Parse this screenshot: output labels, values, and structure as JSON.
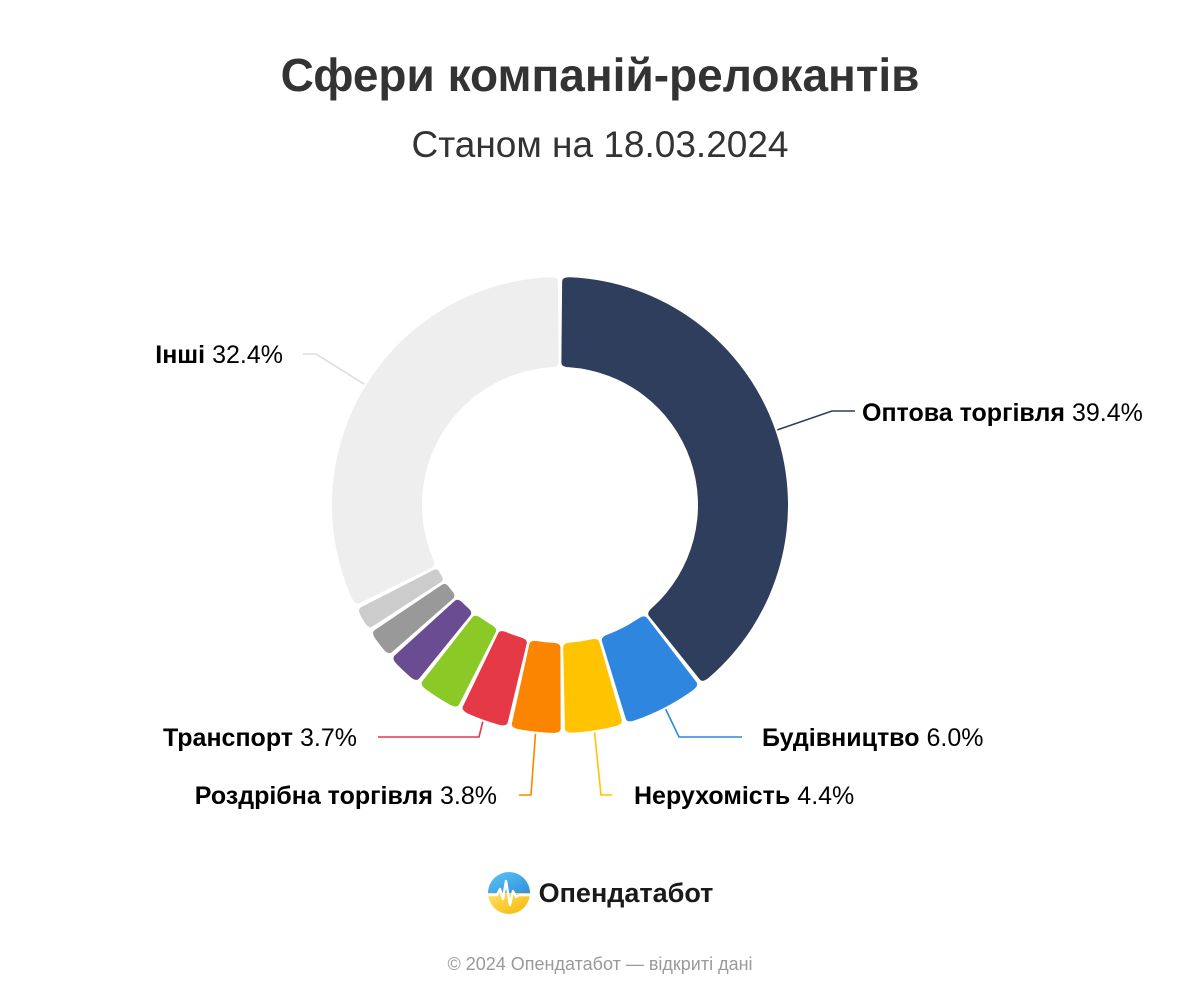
{
  "page": {
    "title": "Сфери компаній-релокантів",
    "subtitle": "Станом на 18.03.2024",
    "brand": "Опендатабот",
    "footer": "© 2024 Опендатабот — відкриті дані"
  },
  "chart_data": {
    "type": "pie",
    "title": "Сфери компаній-релокантів",
    "subtitle": "Станом на 18.03.2024",
    "donut": true,
    "start_angle_deg": 0,
    "direction": "clockwise",
    "slices": [
      {
        "name": "Оптова торгівля",
        "value": 39.4,
        "label": "39.4%",
        "color": "#2f3e5c"
      },
      {
        "name": "Будівництво",
        "value": 6.0,
        "label": "6.0%",
        "color": "#2e86de"
      },
      {
        "name": "Нерухомість",
        "value": 4.4,
        "label": "4.4%",
        "color": "#ffc300"
      },
      {
        "name": "Роздрібна торгівля",
        "value": 3.8,
        "label": "3.8%",
        "color": "#fb8500"
      },
      {
        "name": "Транспорт",
        "value": 3.7,
        "label": "3.7%",
        "color": "#e63946"
      },
      {
        "name": "",
        "value": 3.4,
        "label": "",
        "color": "#8ac926"
      },
      {
        "name": "",
        "value": 2.7,
        "label": "",
        "color": "#6a4c93"
      },
      {
        "name": "",
        "value": 2.3,
        "label": "",
        "color": "#999999"
      },
      {
        "name": "",
        "value": 1.9,
        "label": "",
        "color": "#cccccc"
      },
      {
        "name": "Інші",
        "value": 32.4,
        "label": "32.4%",
        "color": "#eeeeee"
      }
    ]
  }
}
